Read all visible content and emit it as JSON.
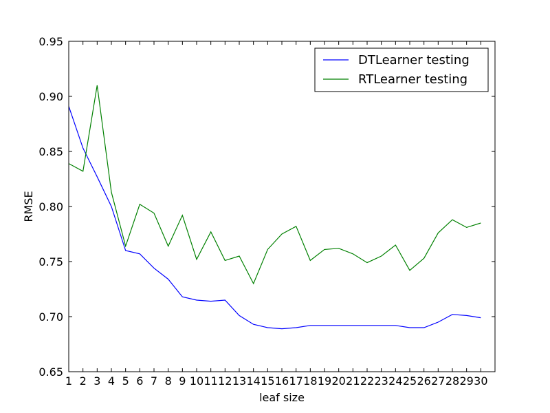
{
  "chart_data": {
    "type": "line",
    "xlabel": "leaf size",
    "ylabel": "RMSE",
    "xlim": [
      1,
      31
    ],
    "ylim": [
      0.65,
      0.95
    ],
    "x": [
      1,
      2,
      3,
      4,
      5,
      6,
      7,
      8,
      9,
      10,
      11,
      12,
      13,
      14,
      15,
      16,
      17,
      18,
      19,
      20,
      21,
      22,
      23,
      24,
      25,
      26,
      27,
      28,
      29,
      30
    ],
    "x_ticks": [
      "1",
      "2",
      "3",
      "4",
      "5",
      "6",
      "7",
      "8",
      "9",
      "10",
      "11",
      "12",
      "13",
      "14",
      "15",
      "16",
      "17",
      "18",
      "19",
      "20",
      "21",
      "22",
      "23",
      "24",
      "25",
      "26",
      "27",
      "28",
      "29",
      "30"
    ],
    "y_ticks": [
      "0.65",
      "0.70",
      "0.75",
      "0.80",
      "0.85",
      "0.90",
      "0.95"
    ],
    "legend_position": "top-right",
    "grid": false,
    "series": [
      {
        "name": "DTLearner testing",
        "color": "#0000ff",
        "values": [
          0.891,
          0.853,
          0.827,
          0.8,
          0.76,
          0.757,
          0.744,
          0.734,
          0.718,
          0.715,
          0.714,
          0.715,
          0.701,
          0.693,
          0.69,
          0.689,
          0.69,
          0.692,
          0.692,
          0.692,
          0.692,
          0.692,
          0.692,
          0.692,
          0.69,
          0.69,
          0.695,
          0.702,
          0.701,
          0.699
        ]
      },
      {
        "name": "RTLearner testing",
        "color": "#008000",
        "values": [
          0.839,
          0.832,
          0.91,
          0.813,
          0.764,
          0.802,
          0.794,
          0.764,
          0.792,
          0.752,
          0.777,
          0.751,
          0.755,
          0.73,
          0.761,
          0.775,
          0.782,
          0.751,
          0.761,
          0.762,
          0.757,
          0.749,
          0.755,
          0.765,
          0.742,
          0.753,
          0.776,
          0.788,
          0.781,
          0.785
        ]
      }
    ]
  }
}
